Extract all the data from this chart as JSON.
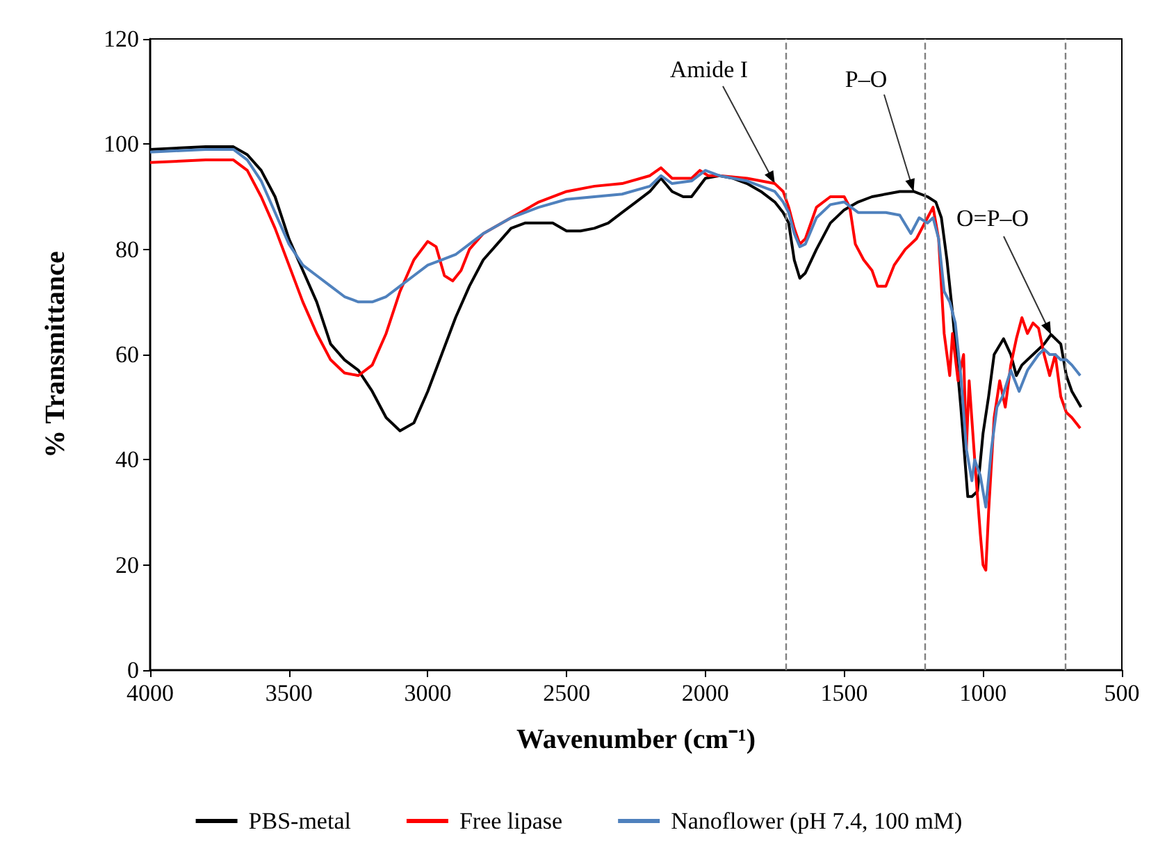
{
  "chart_data": {
    "type": "line",
    "xlabel": "Wavenumber (cm⁻¹)",
    "ylabel": "% Transmittance",
    "xlim": [
      4000,
      500
    ],
    "xticks": [
      4000,
      3500,
      3000,
      2500,
      2000,
      1500,
      1000,
      500
    ],
    "ylim": [
      0,
      120
    ],
    "yticks": [
      0,
      20,
      40,
      60,
      80,
      100,
      120
    ],
    "grid": false,
    "legend": "bottom",
    "marker": "none",
    "line_style": "solid",
    "series": [
      {
        "name": "PBS-metal",
        "color": "#000000",
        "x": [
          4000,
          3800,
          3700,
          3650,
          3600,
          3550,
          3500,
          3450,
          3400,
          3350,
          3300,
          3250,
          3200,
          3150,
          3100,
          3050,
          3000,
          2950,
          2900,
          2850,
          2800,
          2750,
          2700,
          2650,
          2600,
          2550,
          2500,
          2450,
          2400,
          2350,
          2300,
          2250,
          2200,
          2160,
          2120,
          2080,
          2050,
          2000,
          1950,
          1900,
          1850,
          1800,
          1750,
          1720,
          1700,
          1680,
          1660,
          1640,
          1600,
          1550,
          1500,
          1450,
          1400,
          1300,
          1250,
          1200,
          1170,
          1150,
          1130,
          1110,
          1080,
          1055,
          1040,
          1020,
          1000,
          980,
          960,
          926,
          900,
          880,
          860,
          820,
          780,
          755,
          720,
          700,
          680,
          647
        ],
        "values": [
          99,
          99.5,
          99.5,
          98,
          95,
          90,
          82,
          76,
          70,
          62,
          59,
          57,
          53,
          48,
          45.5,
          47,
          53,
          60,
          67,
          73,
          78,
          81,
          84,
          85,
          85,
          85,
          83.5,
          83.5,
          84,
          85,
          87,
          89,
          91,
          93.5,
          91,
          90,
          90,
          93.5,
          94,
          93.5,
          92.5,
          91,
          89,
          87,
          85,
          78,
          74.5,
          75.5,
          80,
          85,
          87.5,
          89,
          90,
          91,
          91,
          90,
          89,
          86,
          78,
          68,
          50,
          33,
          33,
          34,
          45,
          52,
          60,
          63,
          60,
          56,
          58,
          60,
          62,
          63.8,
          62,
          56,
          53,
          50
        ]
      },
      {
        "name": "Free lipase",
        "color": "#ff0000",
        "x": [
          4000,
          3800,
          3700,
          3650,
          3600,
          3550,
          3500,
          3450,
          3400,
          3350,
          3300,
          3250,
          3200,
          3150,
          3100,
          3050,
          3000,
          2970,
          2940,
          2910,
          2880,
          2850,
          2800,
          2700,
          2600,
          2500,
          2400,
          2300,
          2200,
          2160,
          2120,
          2050,
          2020,
          1990,
          1950,
          1850,
          1750,
          1720,
          1700,
          1680,
          1660,
          1640,
          1600,
          1550,
          1500,
          1480,
          1460,
          1430,
          1400,
          1380,
          1350,
          1320,
          1280,
          1240,
          1220,
          1200,
          1180,
          1160,
          1140,
          1120,
          1110,
          1090,
          1070,
          1060,
          1050,
          1030,
          1010,
          1000,
          990,
          980,
          960,
          940,
          920,
          900,
          880,
          860,
          840,
          820,
          800,
          780,
          760,
          740,
          720,
          700,
          680,
          650
        ],
        "values": [
          96.5,
          97,
          97,
          95,
          90,
          84,
          77,
          70,
          64,
          59,
          56.5,
          56,
          58,
          64,
          72,
          78,
          81.5,
          80.5,
          75,
          74,
          76,
          80,
          83,
          86,
          89,
          91,
          92,
          92.5,
          94,
          95.5,
          93.5,
          93.5,
          95,
          94,
          94,
          93.5,
          92.5,
          91,
          88,
          84,
          81,
          82,
          88,
          90,
          90,
          88,
          81,
          78,
          76,
          73,
          73,
          77,
          80,
          82,
          84,
          86,
          88,
          82,
          64,
          56,
          64,
          55,
          60,
          42,
          55,
          40,
          26,
          20,
          19,
          30,
          48,
          55,
          50,
          58,
          63,
          67,
          64,
          66,
          65,
          60,
          56,
          60,
          52,
          49,
          48,
          46
        ]
      },
      {
        "name": "Nanoflower (pH 7.4, 100 mM)",
        "color": "#4f81bd",
        "x": [
          4000,
          3800,
          3700,
          3650,
          3600,
          3550,
          3500,
          3450,
          3400,
          3350,
          3300,
          3250,
          3200,
          3150,
          3100,
          3050,
          3000,
          2950,
          2900,
          2850,
          2800,
          2700,
          2600,
          2500,
          2400,
          2300,
          2200,
          2160,
          2120,
          2050,
          2000,
          1950,
          1850,
          1750,
          1720,
          1700,
          1680,
          1660,
          1640,
          1600,
          1550,
          1500,
          1450,
          1400,
          1350,
          1300,
          1260,
          1230,
          1200,
          1180,
          1160,
          1140,
          1120,
          1100,
          1080,
          1060,
          1040,
          1030,
          1010,
          990,
          970,
          950,
          930,
          900,
          870,
          840,
          800,
          780,
          760,
          740,
          720,
          700,
          680,
          650
        ],
        "values": [
          98.5,
          99,
          99,
          97,
          93,
          87,
          81,
          77,
          75,
          73,
          71,
          70,
          70,
          71,
          73,
          75,
          77,
          78,
          79,
          81,
          83,
          86,
          88,
          89.5,
          90,
          90.5,
          92,
          94,
          92.5,
          93,
          95,
          94,
          93,
          91,
          89,
          87,
          83,
          80.5,
          81,
          86,
          88.5,
          89,
          87,
          87,
          87,
          86.5,
          83,
          86,
          85,
          86,
          82,
          72,
          70,
          66,
          56,
          42,
          36,
          40,
          37,
          31,
          42,
          50,
          52,
          57,
          53,
          57,
          60,
          61,
          60,
          60,
          59,
          59,
          58,
          56
        ]
      }
    ],
    "ref_lines": [
      {
        "axis": "x",
        "value": 1710,
        "color": "#808080",
        "line_style": "dashed"
      },
      {
        "axis": "x",
        "value": 1210,
        "color": "#808080",
        "line_style": "dashed"
      },
      {
        "axis": "x",
        "value": 705,
        "color": "#808080",
        "line_style": "dashed"
      }
    ],
    "annotations": [
      {
        "text": "Amide I",
        "x": 1750,
        "y": 92.5
      },
      {
        "text": "P–O",
        "x": 1250,
        "y": 91
      },
      {
        "text": "O=P–O",
        "x": 755,
        "y": 63.8
      }
    ]
  }
}
